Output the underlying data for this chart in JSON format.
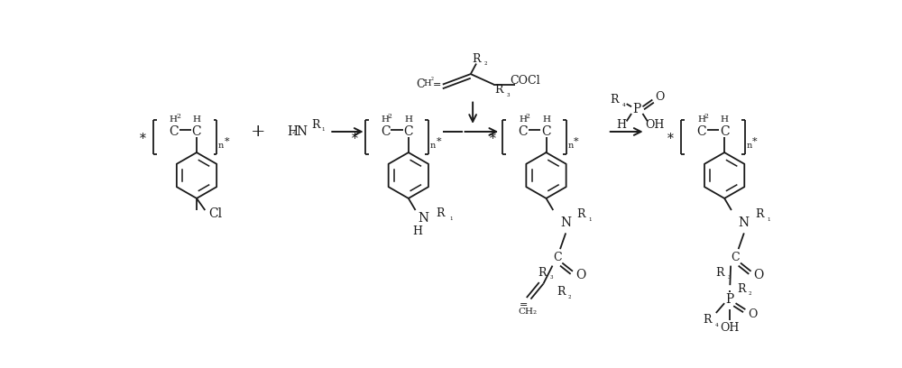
{
  "bg_color": "#ffffff",
  "line_color": "#1a1a1a",
  "figsize": [
    10.0,
    4.08
  ],
  "dpi": 100,
  "xlim": [
    0,
    10
  ],
  "ylim": [
    0,
    4.08
  ]
}
